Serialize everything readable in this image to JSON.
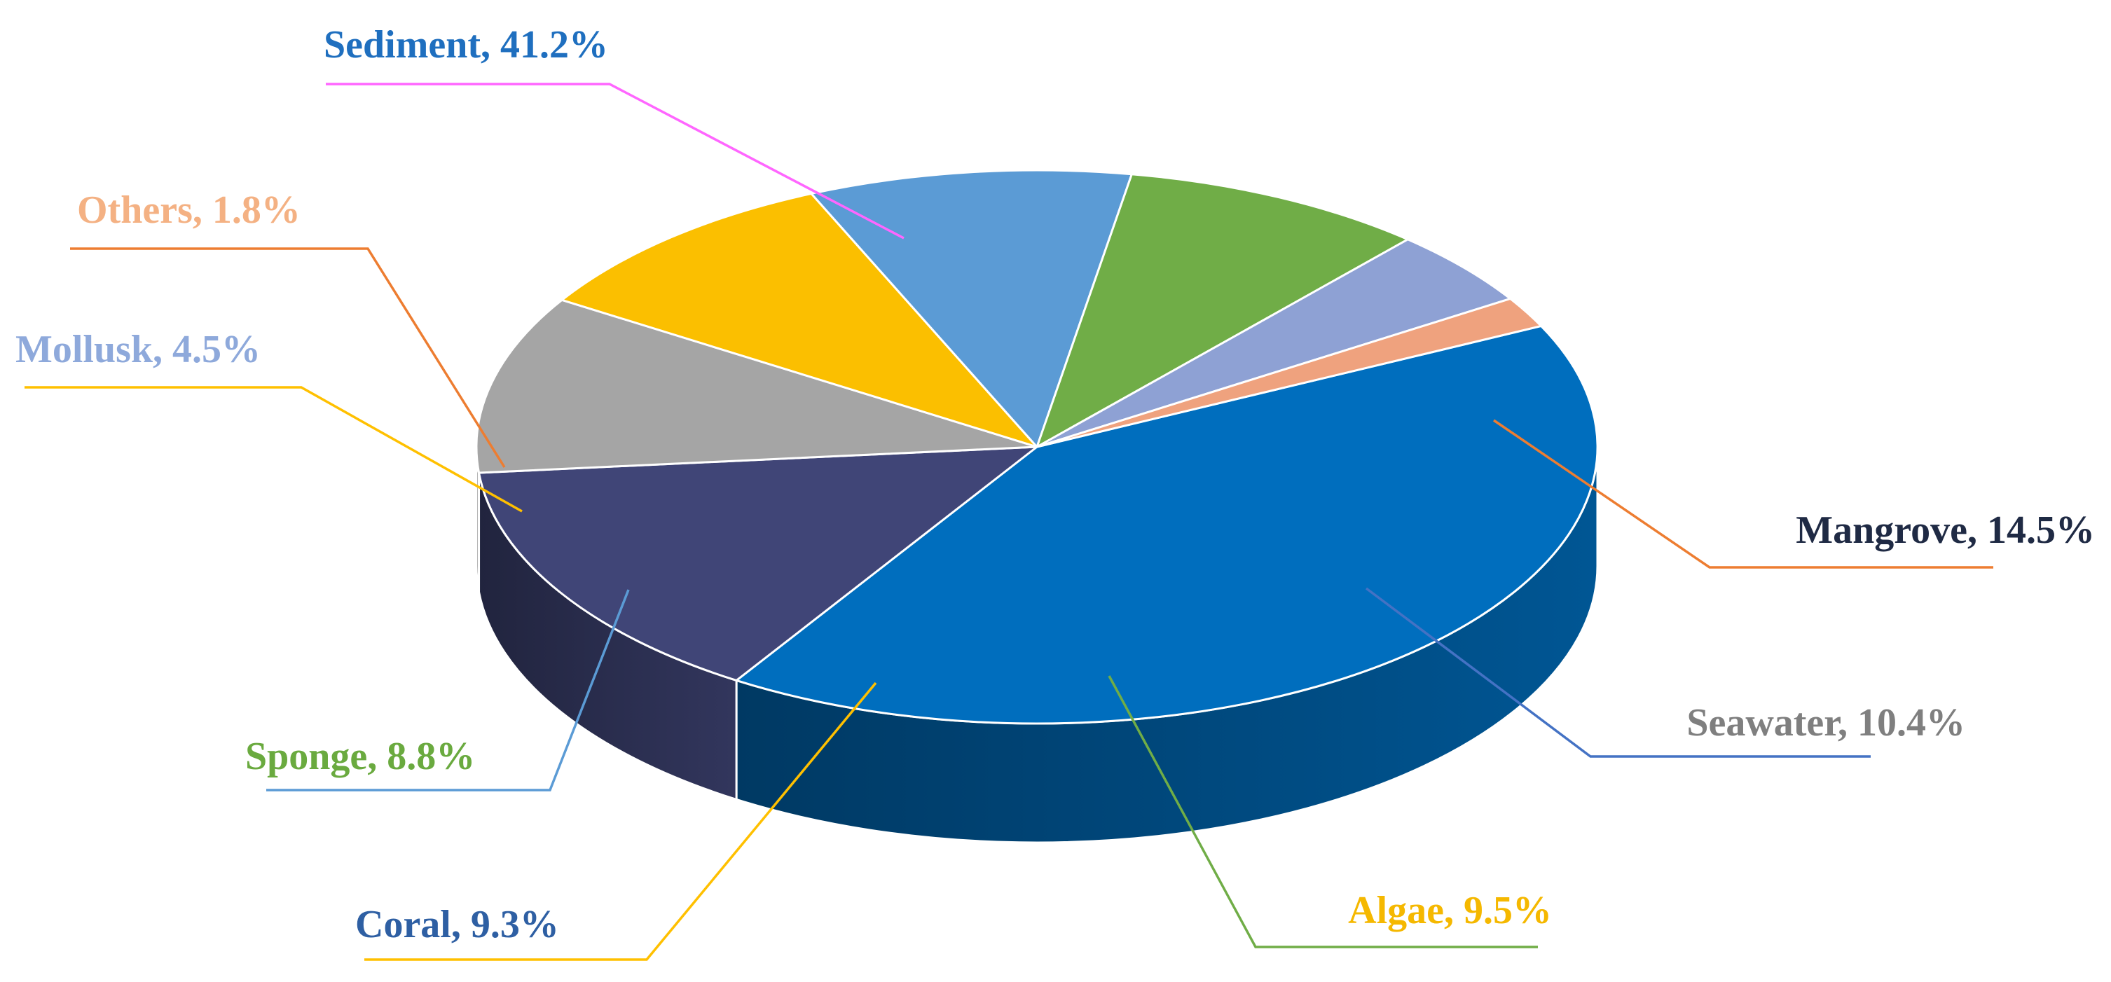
{
  "chart_data": {
    "type": "pie",
    "style": "3d",
    "categories": [
      "Sediment",
      "Mangrove",
      "Seawater",
      "Algae",
      "Coral",
      "Sponge",
      "Mollusk",
      "Others"
    ],
    "values": [
      41.2,
      14.5,
      10.4,
      9.5,
      9.3,
      8.8,
      4.5,
      1.8
    ],
    "labels": [
      "Sediment, 41.2%",
      "Mangrove, 14.5%",
      "Seawater, 10.4%",
      "Algae, 9.5%",
      "Coral, 9.3%",
      "Sponge, 8.8%",
      "Mollusk, 4.5%",
      "Others, 1.8%"
    ],
    "colors": [
      "#006EBE",
      "#404577",
      "#A5A5A5",
      "#FBBF00",
      "#5B9BD5",
      "#70AD47",
      "#8EA1D4",
      "#EFA27E"
    ],
    "label_colors": [
      "#1F6FBF",
      "#1F2A44",
      "#7F7F7F",
      "#F5B800",
      "#2E5FA3",
      "#6AAA3F",
      "#8EA9DB",
      "#F4B183"
    ],
    "leader_colors": [
      "#FF66FF",
      "#ED7D31",
      "#4472C4",
      "#70AD47",
      "#FFC000",
      "#5B9BD5",
      "#FFC000",
      "#ED7D31"
    ],
    "title": "",
    "legend": "none"
  }
}
